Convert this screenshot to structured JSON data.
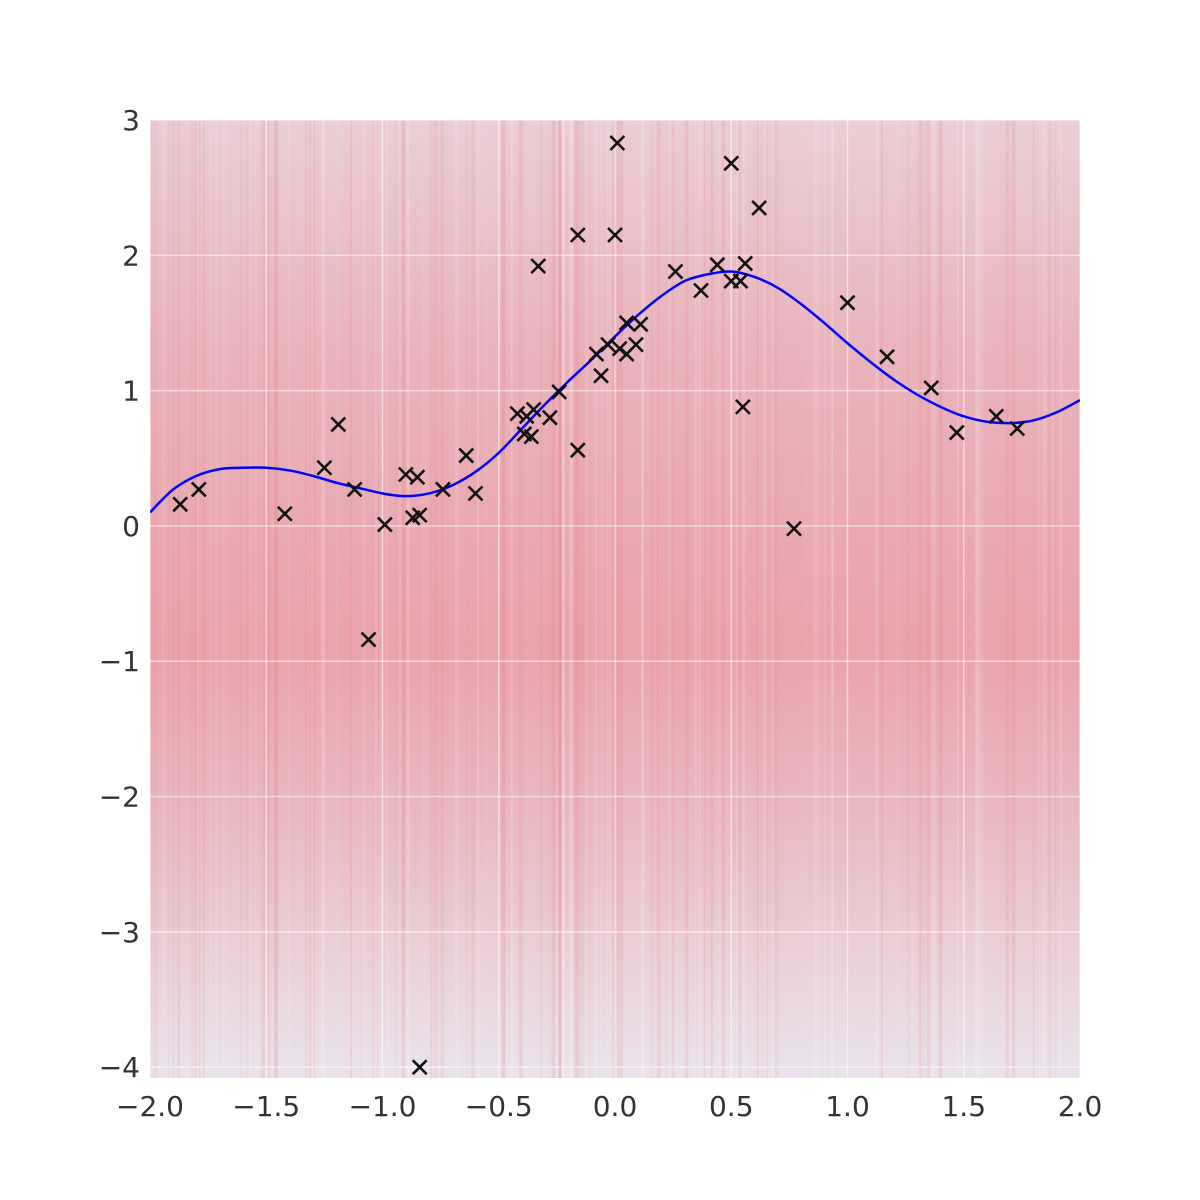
{
  "chart_data": {
    "type": "scatter",
    "title": "",
    "xlabel": "",
    "ylabel": "",
    "xlim": [
      -2.0,
      2.0
    ],
    "ylim": [
      -4.08,
      3.0
    ],
    "x_ticks": [
      -2.0,
      -1.5,
      -1.0,
      -0.5,
      0.0,
      0.5,
      1.0,
      1.5,
      2.0
    ],
    "x_tick_labels": [
      "−2.0",
      "−1.5",
      "−1.0",
      "−0.5",
      "0.0",
      "0.5",
      "1.0",
      "1.5",
      "2.0"
    ],
    "y_ticks": [
      3,
      2,
      1,
      0,
      -1,
      -2,
      -3,
      -4
    ],
    "y_tick_labels": [
      "3",
      "2",
      "1",
      "0",
      "−1",
      "−2",
      "−3",
      "−4"
    ],
    "grid": true,
    "legend": "none",
    "colors": {
      "background": "#eaeaf2",
      "band": "#e8686f",
      "mean_line": "#0000ff",
      "points": "#111111",
      "grid": "#ffffff"
    },
    "series": [
      {
        "type": "scatter",
        "marker": "x",
        "points": [
          [
            -1.87,
            0.16
          ],
          [
            -1.79,
            0.27
          ],
          [
            -1.42,
            0.09
          ],
          [
            -1.25,
            0.43
          ],
          [
            -1.19,
            0.75
          ],
          [
            -1.12,
            0.27
          ],
          [
            -1.06,
            -0.84
          ],
          [
            -0.99,
            0.01
          ],
          [
            -0.9,
            0.38
          ],
          [
            -0.87,
            0.06
          ],
          [
            -0.85,
            0.36
          ],
          [
            -0.84,
            0.08
          ],
          [
            -0.84,
            -4.0
          ],
          [
            -0.74,
            0.27
          ],
          [
            -0.64,
            0.52
          ],
          [
            -0.6,
            0.24
          ],
          [
            -0.42,
            0.83
          ],
          [
            -0.39,
            0.68
          ],
          [
            -0.38,
            0.81
          ],
          [
            -0.36,
            0.66
          ],
          [
            -0.35,
            0.86
          ],
          [
            -0.33,
            1.92
          ],
          [
            -0.28,
            0.8
          ],
          [
            -0.24,
            0.99
          ],
          [
            -0.16,
            2.15
          ],
          [
            -0.16,
            0.56
          ],
          [
            -0.08,
            1.27
          ],
          [
            -0.06,
            1.11
          ],
          [
            -0.03,
            1.34
          ],
          [
            0.0,
            2.15
          ],
          [
            0.01,
            2.83
          ],
          [
            0.02,
            1.31
          ],
          [
            0.05,
            1.5
          ],
          [
            0.05,
            1.27
          ],
          [
            0.09,
            1.34
          ],
          [
            0.11,
            1.49
          ],
          [
            0.26,
            1.88
          ],
          [
            0.37,
            1.74
          ],
          [
            0.44,
            1.93
          ],
          [
            0.5,
            2.68
          ],
          [
            0.5,
            1.81
          ],
          [
            0.54,
            1.81
          ],
          [
            0.55,
            0.88
          ],
          [
            0.56,
            1.94
          ],
          [
            0.62,
            2.35
          ],
          [
            0.77,
            -0.02
          ],
          [
            1.0,
            1.65
          ],
          [
            1.17,
            1.25
          ],
          [
            1.36,
            1.02
          ],
          [
            1.47,
            0.69
          ],
          [
            1.64,
            0.81
          ],
          [
            1.73,
            0.72
          ]
        ]
      },
      {
        "type": "line",
        "points": [
          [
            -2.0,
            0.1
          ],
          [
            -1.9,
            0.27
          ],
          [
            -1.8,
            0.37
          ],
          [
            -1.7,
            0.42
          ],
          [
            -1.6,
            0.43
          ],
          [
            -1.5,
            0.43
          ],
          [
            -1.4,
            0.41
          ],
          [
            -1.3,
            0.37
          ],
          [
            -1.2,
            0.32
          ],
          [
            -1.1,
            0.28
          ],
          [
            -1.0,
            0.24
          ],
          [
            -0.9,
            0.22
          ],
          [
            -0.8,
            0.24
          ],
          [
            -0.7,
            0.3
          ],
          [
            -0.6,
            0.4
          ],
          [
            -0.5,
            0.54
          ],
          [
            -0.4,
            0.72
          ],
          [
            -0.3,
            0.9
          ],
          [
            -0.2,
            1.07
          ],
          [
            -0.1,
            1.23
          ],
          [
            0.0,
            1.4
          ],
          [
            0.1,
            1.56
          ],
          [
            0.2,
            1.7
          ],
          [
            0.3,
            1.81
          ],
          [
            0.4,
            1.86
          ],
          [
            0.5,
            1.88
          ],
          [
            0.6,
            1.84
          ],
          [
            0.7,
            1.76
          ],
          [
            0.8,
            1.64
          ],
          [
            0.9,
            1.5
          ],
          [
            1.0,
            1.35
          ],
          [
            1.1,
            1.21
          ],
          [
            1.2,
            1.08
          ],
          [
            1.3,
            0.97
          ],
          [
            1.4,
            0.88
          ],
          [
            1.5,
            0.81
          ],
          [
            1.6,
            0.77
          ],
          [
            1.7,
            0.76
          ],
          [
            1.8,
            0.78
          ],
          [
            1.9,
            0.84
          ],
          [
            2.0,
            0.93
          ]
        ]
      }
    ]
  }
}
